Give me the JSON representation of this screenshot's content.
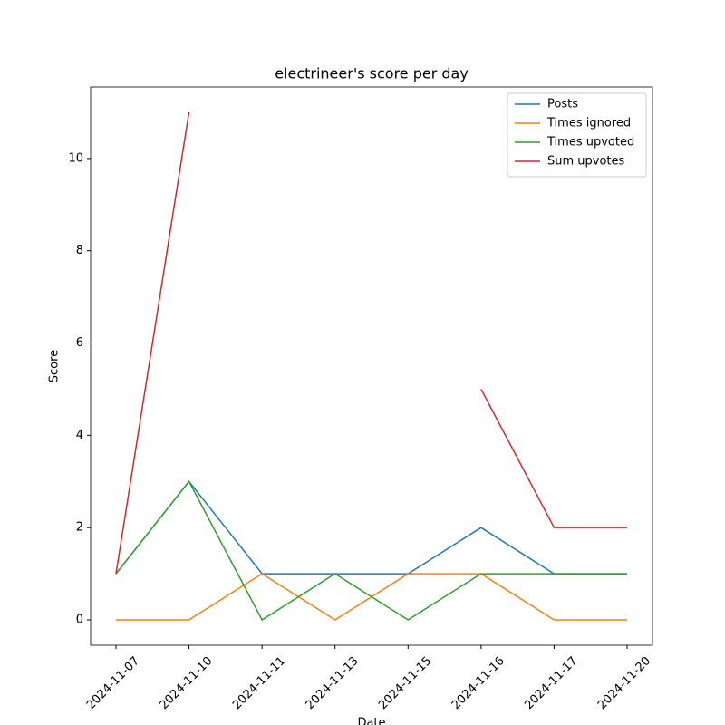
{
  "chart_data": {
    "type": "line",
    "title": "electrineer's score per day",
    "xlabel": "Date",
    "ylabel": "Score",
    "categories": [
      "2024-11-07",
      "2024-11-10",
      "2024-11-11",
      "2024-11-13",
      "2024-11-15",
      "2024-11-16",
      "2024-11-17",
      "2024-11-20"
    ],
    "series": [
      {
        "name": "Posts",
        "color": "#1f77b4",
        "values": [
          1,
          3,
          1,
          1,
          1,
          2,
          1,
          1
        ]
      },
      {
        "name": "Times ignored",
        "color": "#ff7f0e",
        "values": [
          0,
          0,
          1,
          0,
          1,
          1,
          0,
          0
        ]
      },
      {
        "name": "Times upvoted",
        "color": "#2ca02c",
        "values": [
          1,
          3,
          0,
          1,
          0,
          1,
          1,
          1
        ]
      },
      {
        "name": "Sum upvotes",
        "color": "#d62728",
        "values": [
          1,
          11,
          null,
          null,
          null,
          5,
          2,
          2
        ]
      }
    ],
    "ylim": [
      -0.55,
      11.55
    ],
    "yticks": [
      0,
      2,
      4,
      6,
      8,
      10
    ],
    "legend": "upper right"
  }
}
